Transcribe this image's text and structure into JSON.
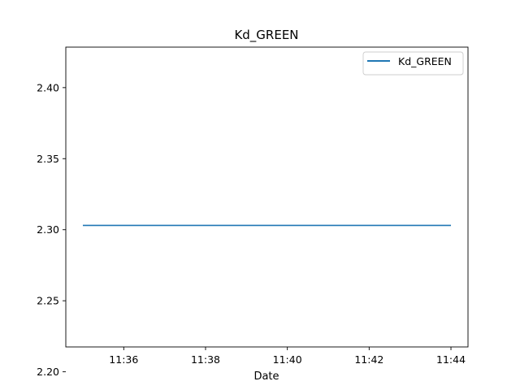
{
  "chart_data": {
    "type": "line",
    "title": "Kd_GREEN",
    "xlabel": "Date",
    "ylabel": "",
    "x_ticks": [
      "11:36",
      "11:38",
      "11:40",
      "11:42",
      "11:44"
    ],
    "y_ticks": [
      "2.20",
      "2.25",
      "2.30",
      "2.35",
      "2.40"
    ],
    "ylim": [
      2.2175,
      2.4285
    ],
    "xlim": [
      "11:34:35",
      "11:44:25"
    ],
    "series": [
      {
        "name": "Kd_GREEN",
        "color": "#1f77b4",
        "x": [
          "11:35",
          "11:44"
        ],
        "y": [
          2.303,
          2.303
        ]
      }
    ],
    "legend": {
      "placement": "top-right"
    },
    "grid": false
  }
}
